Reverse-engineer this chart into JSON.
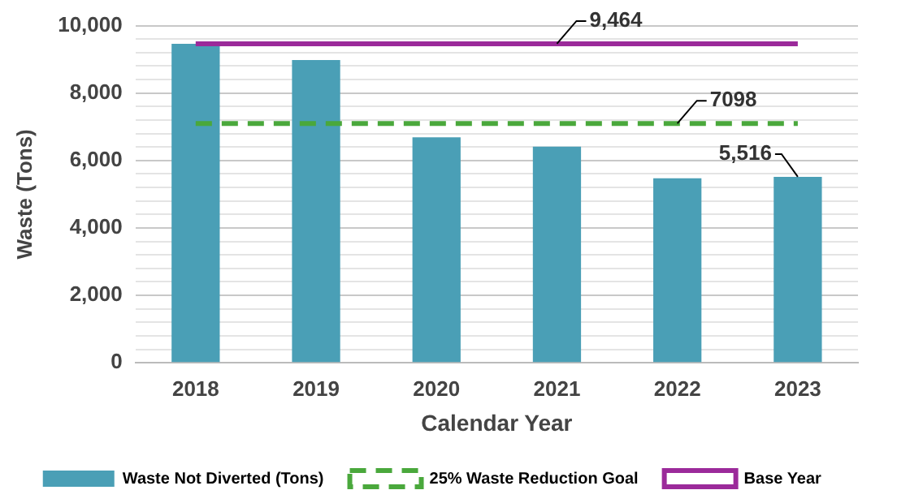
{
  "chart_data": {
    "type": "bar",
    "xlabel": "Calendar Year",
    "ylabel": "Waste (Tons)",
    "categories": [
      "2018",
      "2019",
      "2020",
      "2021",
      "2022",
      "2023"
    ],
    "series": [
      {
        "name": "Waste Not Diverted (Tons)",
        "color": "#4a9fb6",
        "values": [
          9464,
          8980,
          6690,
          6410,
          5470,
          5516
        ]
      },
      {
        "name": "25% Waste Reduction Goal",
        "type": "line",
        "color": "#4aa83c",
        "line_style": "dashed",
        "marker": "none",
        "values": [
          7098,
          7098,
          7098,
          7098,
          7098,
          7098
        ]
      },
      {
        "name": "Base Year",
        "type": "line",
        "color": "#9b2a9a",
        "line_style": "solid",
        "marker": "none",
        "values": [
          9464,
          9464,
          9464,
          9464,
          9464,
          9464
        ]
      }
    ],
    "annotations": [
      {
        "text": "9,464",
        "x": "2021",
        "y": 9464
      },
      {
        "text": "7098",
        "x": "2022",
        "y": 7098
      },
      {
        "text": "5,516",
        "x": "2023",
        "y": 5516
      }
    ],
    "ylim": [
      0,
      10000
    ],
    "yticks": [
      0,
      {
        "value": 400,
        "label": null
      },
      {
        "value": 800,
        "label": null
      },
      {
        "value": 1200,
        "label": null
      },
      {
        "value": 1600,
        "label": null
      },
      {
        "value": 2000,
        "label": "2,000"
      },
      {
        "value": 2400,
        "label": null
      },
      {
        "value": 2800,
        "label": null
      },
      {
        "value": 3200,
        "label": null
      },
      {
        "value": 3600,
        "label": null
      },
      {
        "value": 4000,
        "label": "4,000"
      },
      {
        "value": 4400,
        "label": null
      },
      {
        "value": 4800,
        "label": null
      },
      {
        "value": 5200,
        "label": null
      },
      {
        "value": 5600,
        "label": null
      },
      {
        "value": 6000,
        "label": "6,000"
      },
      {
        "value": 6400,
        "label": null
      },
      {
        "value": 6800,
        "label": null
      },
      {
        "value": 7200,
        "label": null
      },
      {
        "value": 7600,
        "label": null
      },
      {
        "value": 8000,
        "label": "8,000"
      },
      {
        "value": 8400,
        "label": null
      },
      {
        "value": 8800,
        "label": null
      },
      {
        "value": 9200,
        "label": null
      },
      {
        "value": 9600,
        "label": null
      },
      {
        "value": 10000,
        "label": "10,000"
      }
    ],
    "grid": "y",
    "legend": "bottom"
  }
}
